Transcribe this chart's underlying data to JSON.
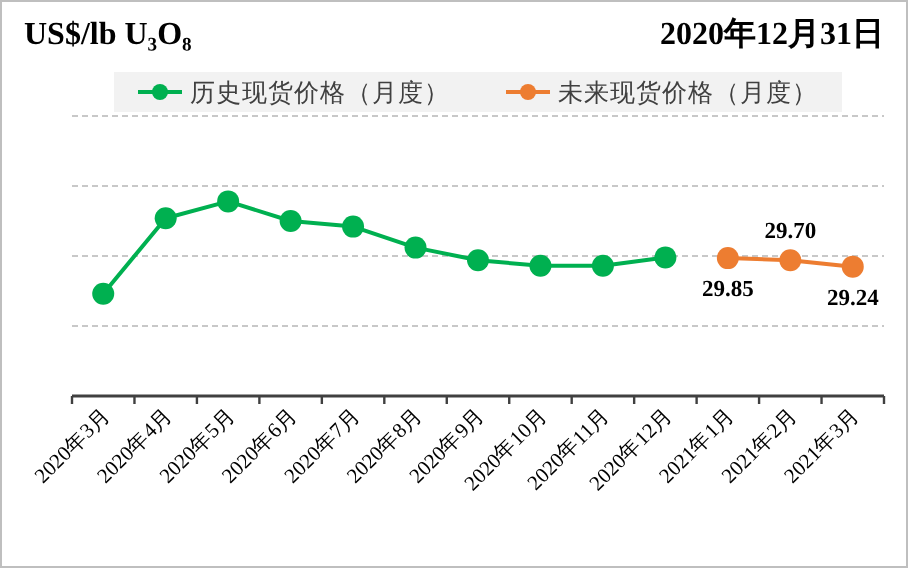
{
  "chart_data": {
    "type": "line",
    "title": "US$/lb U₃O₈",
    "subtitle": "2020年12月31日",
    "categories": [
      "2020年3月",
      "2020年4月",
      "2020年5月",
      "2020年6月",
      "2020年7月",
      "2020年8月",
      "2020年9月",
      "2020年10月",
      "2020年11月",
      "2020年12月",
      "2021年1月",
      "2021年2月",
      "2021年3月"
    ],
    "series": [
      {
        "name": "历史现货价格（月度）",
        "color": "#00b050",
        "values": [
          27.3,
          32.7,
          33.9,
          32.5,
          32.1,
          30.6,
          29.7,
          29.3,
          29.3,
          29.9,
          null,
          null,
          null
        ]
      },
      {
        "name": "未来现货价格（月度）",
        "color": "#ed7d31",
        "values": [
          null,
          null,
          null,
          null,
          null,
          null,
          null,
          null,
          null,
          null,
          29.85,
          29.7,
          29.24
        ],
        "value_labels": [
          null,
          null,
          null,
          null,
          null,
          null,
          null,
          null,
          null,
          null,
          "29.85",
          "29.70",
          "29.24"
        ]
      }
    ],
    "ylim": [
      20,
      40
    ],
    "yticks": [
      {
        "value": 20,
        "label": null
      },
      {
        "value": 25,
        "label": null
      },
      {
        "value": 30,
        "label": null
      },
      {
        "value": 35,
        "label": null
      },
      {
        "value": 40,
        "label": null
      }
    ],
    "tick_labels": "x",
    "grid": "y",
    "legend": "top",
    "marker": "circle",
    "line_style": "solid"
  }
}
